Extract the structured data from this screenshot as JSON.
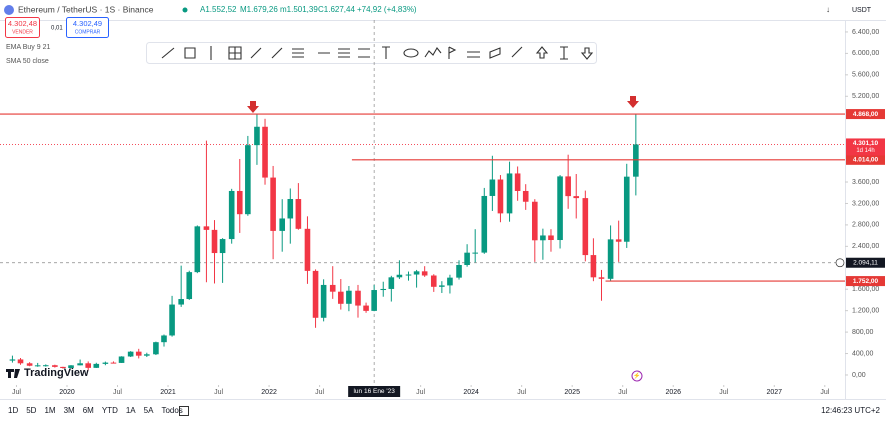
{
  "ui": {
    "title": "Ethereum / TetherUS · 1S · Binance",
    "ohlc": [
      "A1.552,52",
      "M1.679,26",
      "m1.501,39",
      "C1.627,44",
      "+74,92 (+4,83%)"
    ],
    "sell": {
      "price": "4.302,48",
      "label": "VENDER"
    },
    "spread": "0,01",
    "buy": {
      "price": "4.302,49",
      "label": "COMPRAR"
    },
    "indicators": [
      "EMA Buy 9 21",
      "SMA 50 close"
    ],
    "currency": "USDT",
    "logo": "TradingView",
    "ranges": [
      "1D",
      "5D",
      "1M",
      "3M",
      "6M",
      "YTD",
      "1A",
      "5A",
      "Todos"
    ],
    "clock": "12:46:23 UTC+2"
  },
  "chart_data": {
    "type": "candlestick",
    "up_color": "#089981",
    "down_color": "#f23645",
    "xlim": [
      2019.337,
      2027.7
    ],
    "ylim": [
      -187,
      6623
    ],
    "xticks": [
      {
        "value": 2019.5,
        "label": "Jul"
      },
      2020,
      {
        "value": 2020.5,
        "label": "Jul"
      },
      2021,
      {
        "value": 2021.5,
        "label": "Jul"
      },
      2022,
      {
        "value": 2022.5,
        "label": "Jul"
      },
      {
        "value": 2023.5,
        "label": "Jul"
      },
      2024,
      {
        "value": 2024.5,
        "label": "Jul"
      },
      2025,
      {
        "value": 2025.5,
        "label": "Jul"
      },
      2026,
      {
        "value": 2026.5,
        "label": "Jul"
      },
      2027,
      {
        "value": 2027.5,
        "label": "Jul"
      }
    ],
    "yticks": [
      {
        "value": 0,
        "label": "0,00"
      },
      {
        "value": 400,
        "label": "400,00"
      },
      {
        "value": 800,
        "label": "800,00"
      },
      {
        "value": 1200,
        "label": "1.200,00"
      },
      {
        "value": 1600,
        "label": "1.600,00"
      },
      {
        "value": 2400,
        "label": "2.400,00"
      },
      {
        "value": 2800,
        "label": "2.800,00"
      },
      {
        "value": 3200,
        "label": "3.200,00"
      },
      {
        "value": 3600,
        "label": "3.600,00"
      },
      {
        "value": 5200,
        "label": "5.200,00"
      },
      {
        "value": 5600,
        "label": "5.600,00"
      },
      {
        "value": 6000,
        "label": "6.000,00"
      },
      {
        "value": 6400,
        "label": "6.400,00"
      }
    ],
    "x": [
      2019.46,
      2019.54,
      2019.63,
      2019.71,
      2019.79,
      2019.88,
      2019.96,
      2020.04,
      2020.13,
      2020.21,
      2020.29,
      2020.38,
      2020.46,
      2020.54,
      2020.63,
      2020.71,
      2020.79,
      2020.88,
      2020.96,
      2021.04,
      2021.13,
      2021.21,
      2021.29,
      2021.38,
      2021.46,
      2021.54,
      2021.63,
      2021.71,
      2021.79,
      2021.88,
      2021.96,
      2022.04,
      2022.13,
      2022.21,
      2022.29,
      2022.38,
      2022.46,
      2022.54,
      2022.63,
      2022.71,
      2022.79,
      2022.88,
      2022.96,
      2023.04,
      2023.13,
      2023.21,
      2023.29,
      2023.38,
      2023.46,
      2023.54,
      2023.63,
      2023.71,
      2023.79,
      2023.88,
      2023.96,
      2024.04,
      2024.13,
      2024.21,
      2024.29,
      2024.38,
      2024.46,
      2024.54,
      2024.63,
      2024.71,
      2024.79,
      2024.88,
      2024.96,
      2025.04,
      2025.13,
      2025.21,
      2025.29,
      2025.38,
      2025.46,
      2025.54,
      2025.63
    ],
    "open": [
      268,
      290,
      218,
      172,
      180,
      182,
      151,
      130,
      180,
      218,
      133,
      207,
      231,
      225,
      345,
      435,
      360,
      386,
      612,
      737,
      1314,
      1417,
      1919,
      2773,
      2707,
      2275,
      2536,
      3433,
      3000,
      4288,
      4631,
      3683,
      2688,
      2920,
      3283,
      2727,
      1942,
      1067,
      1680,
      1554,
      1328,
      1572,
      1295,
      1196,
      1585,
      1605,
      1822,
      1870,
      1874,
      1934,
      1856,
      1645,
      1671,
      1816,
      2052,
      2282,
      2283,
      3340,
      3647,
      3015,
      3760,
      3433,
      3232,
      2513,
      2603,
      2518,
      3705,
      3337,
      3300,
      2237,
      1822,
      1794,
      2530,
      2486,
      3700
    ],
    "high": [
      361,
      317,
      239,
      225,
      198,
      192,
      153,
      184,
      288,
      253,
      228,
      250,
      253,
      350,
      445,
      488,
      415,
      622,
      755,
      1476,
      2040,
      1945,
      2790,
      4372,
      2890,
      2553,
      3473,
      4030,
      4460,
      4868,
      4780,
      3900,
      3280,
      3480,
      3580,
      2960,
      1970,
      1785,
      2030,
      1790,
      1660,
      1680,
      1350,
      1680,
      1740,
      1850,
      2140,
      1930,
      1960,
      2030,
      1880,
      1750,
      1870,
      2140,
      2440,
      2720,
      3490,
      4090,
      3730,
      3980,
      3890,
      3560,
      3280,
      2730,
      2720,
      3730,
      4110,
      3750,
      3440,
      2550,
      1960,
      2790,
      2880,
      3940,
      4868
    ],
    "low": [
      231,
      190,
      163,
      153,
      156,
      138,
      117,
      127,
      178,
      90,
      130,
      182,
      215,
      224,
      335,
      309,
      335,
      372,
      530,
      715,
      1270,
      1400,
      1900,
      1730,
      1707,
      1718,
      2450,
      2650,
      2970,
      3920,
      3550,
      2160,
      2300,
      2450,
      2710,
      1700,
      880,
      1000,
      1420,
      1220,
      1190,
      1070,
      1160,
      1190,
      1460,
      1370,
      1790,
      1760,
      1630,
      1830,
      1550,
      1530,
      1520,
      1780,
      2020,
      2100,
      2260,
      3060,
      2850,
      2860,
      3250,
      3080,
      2110,
      2150,
      2300,
      2360,
      3100,
      2920,
      2120,
      1750,
      1385,
      1750,
      2110,
      2370,
      3350
    ],
    "close": [
      290,
      218,
      172,
      180,
      182,
      151,
      130,
      180,
      218,
      133,
      207,
      231,
      225,
      345,
      435,
      360,
      386,
      612,
      737,
      1314,
      1417,
      1919,
      2773,
      2707,
      2275,
      2536,
      3433,
      3000,
      4288,
      4631,
      3683,
      2688,
      2920,
      3283,
      2727,
      1942,
      1067,
      1680,
      1554,
      1328,
      1572,
      1295,
      1196,
      1585,
      1605,
      1822,
      1870,
      1874,
      1934,
      1856,
      1645,
      1671,
      1816,
      2052,
      2282,
      2283,
      3340,
      3647,
      3015,
      3760,
      3433,
      3232,
      2513,
      2603,
      2518,
      3705,
      3337,
      3300,
      2237,
      1822,
      1794,
      2530,
      2486,
      3700,
      4301.1
    ],
    "levels": [
      {
        "value": 4868,
        "label": "4.868,00"
      },
      {
        "value": 4014,
        "label": "4.014,00",
        "from": 2022.82
      },
      {
        "value": 1752,
        "label": "1.752,00",
        "from": 2025.33
      }
    ],
    "last_price": {
      "value": 4301.1,
      "label": "4.301,10",
      "countdown": "1d 14h"
    },
    "crosshair": {
      "x": 2023.04,
      "x_label": "lun 16 Ene '23",
      "y": 2094.11,
      "y_label": "2.094,11"
    }
  }
}
